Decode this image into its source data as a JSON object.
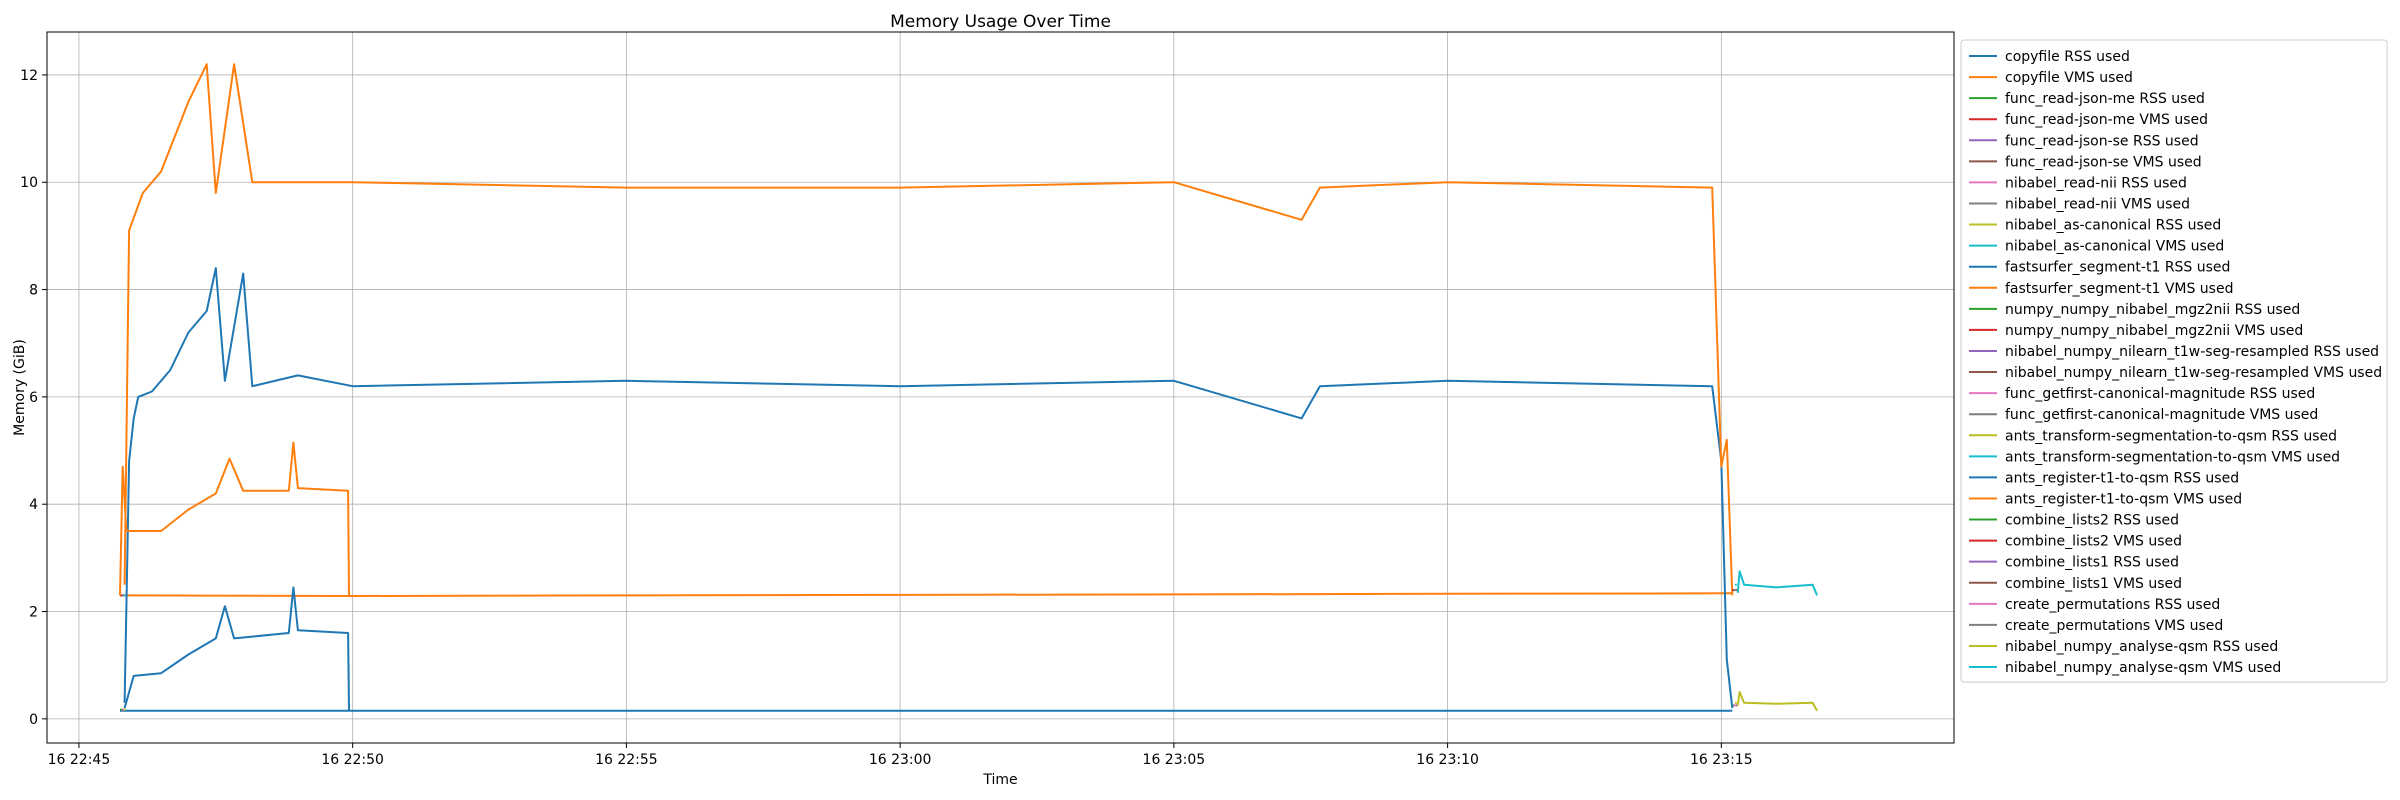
{
  "chart_data": {
    "type": "line",
    "title": "Memory Usage Over Time",
    "xlabel": "Time",
    "ylabel": "Memory (GiB)",
    "grid": true,
    "legend_position": "outside-right",
    "x_unit": "timestamp",
    "xlim": [
      "16 22:44:25",
      "16 23:19:15"
    ],
    "ylim": [
      -0.45,
      12.8
    ],
    "x_ticks": [
      {
        "value": "16 22:45:00",
        "label": "16 22:45"
      },
      {
        "value": "16 22:50:00",
        "label": "16 22:50"
      },
      {
        "value": "16 22:55:00",
        "label": "16 22:55"
      },
      {
        "value": "16 23:00:00",
        "label": "16 23:00"
      },
      {
        "value": "16 23:05:00",
        "label": "16 23:05"
      },
      {
        "value": "16 23:10:00",
        "label": "16 23:10"
      },
      {
        "value": "16 23:15:00",
        "label": "16 23:15"
      }
    ],
    "y_ticks": [
      0,
      2,
      4,
      6,
      8,
      10,
      12
    ],
    "series": [
      {
        "name": "copyfile RSS used",
        "color": "#1f77b4",
        "points": [
          [
            "16 22:45:45",
            0.15
          ],
          [
            "16 23:15:12",
            0.15
          ]
        ]
      },
      {
        "name": "copyfile VMS used",
        "color": "#ff7f0e",
        "points": [
          [
            "16 22:45:45",
            2.3
          ],
          [
            "16 22:50:00",
            2.29
          ],
          [
            "16 22:55:00",
            2.3
          ],
          [
            "16 23:00:00",
            2.31
          ],
          [
            "16 23:05:00",
            2.32
          ],
          [
            "16 23:10:00",
            2.33
          ],
          [
            "16 23:15:12",
            2.34
          ]
        ]
      },
      {
        "name": "func_read-json-me RSS used",
        "color": "#2ca02c",
        "points": [
          [
            "16 22:45:45",
            0.17
          ],
          [
            "16 22:45:47",
            0.17
          ]
        ]
      },
      {
        "name": "func_read-json-me VMS used",
        "color": "#d62728",
        "points": [
          [
            "16 22:45:45",
            2.3
          ],
          [
            "16 22:45:47",
            2.3
          ]
        ]
      },
      {
        "name": "func_read-json-se RSS used",
        "color": "#9467bd",
        "points": [
          [
            "16 22:45:47",
            0.17
          ],
          [
            "16 22:45:49",
            0.17
          ]
        ]
      },
      {
        "name": "func_read-json-se VMS used",
        "color": "#8c564b",
        "points": [
          [
            "16 22:45:47",
            2.3
          ],
          [
            "16 22:45:49",
            2.3
          ]
        ]
      },
      {
        "name": "nibabel_read-nii RSS used",
        "color": "#e377c2",
        "points": [
          [
            "16 22:45:48",
            0.17
          ],
          [
            "16 22:45:50",
            0.17
          ]
        ]
      },
      {
        "name": "nibabel_read-nii VMS used",
        "color": "#7f7f7f",
        "points": [
          [
            "16 22:45:48",
            2.3
          ],
          [
            "16 22:45:50",
            2.3
          ]
        ]
      },
      {
        "name": "nibabel_as-canonical RSS used",
        "color": "#bcbd22",
        "points": [
          [
            "16 22:45:49",
            0.17
          ],
          [
            "16 22:45:51",
            0.17
          ]
        ]
      },
      {
        "name": "nibabel_as-canonical VMS used",
        "color": "#17becf",
        "points": [
          [
            "16 22:45:49",
            2.3
          ],
          [
            "16 22:45:51",
            2.3
          ]
        ]
      },
      {
        "name": "fastsurfer_segment-t1 RSS used",
        "color": "#1f77b4",
        "points": [
          [
            "16 22:45:50",
            0.3
          ],
          [
            "16 22:45:55",
            4.8
          ],
          [
            "16 22:46:00",
            5.6
          ],
          [
            "16 22:46:05",
            6.0
          ],
          [
            "16 22:46:20",
            6.1
          ],
          [
            "16 22:46:40",
            6.5
          ],
          [
            "16 22:47:00",
            7.2
          ],
          [
            "16 22:47:20",
            7.6
          ],
          [
            "16 22:47:30",
            8.4
          ],
          [
            "16 22:47:40",
            6.3
          ],
          [
            "16 22:48:00",
            8.3
          ],
          [
            "16 22:48:10",
            6.2
          ],
          [
            "16 22:49:00",
            6.4
          ],
          [
            "16 22:50:00",
            6.2
          ],
          [
            "16 22:55:00",
            6.3
          ],
          [
            "16 23:00:00",
            6.2
          ],
          [
            "16 23:05:00",
            6.3
          ],
          [
            "16 23:07:20",
            5.6
          ],
          [
            "16 23:07:40",
            6.2
          ],
          [
            "16 23:10:00",
            6.3
          ],
          [
            "16 23:14:50",
            6.2
          ],
          [
            "16 23:15:00",
            4.8
          ],
          [
            "16 23:15:06",
            1.1
          ],
          [
            "16 23:15:12",
            0.2
          ]
        ]
      },
      {
        "name": "fastsurfer_segment-t1 VMS used",
        "color": "#ff7f0e",
        "points": [
          [
            "16 22:45:50",
            2.5
          ],
          [
            "16 22:45:55",
            9.1
          ],
          [
            "16 22:46:10",
            9.8
          ],
          [
            "16 22:46:30",
            10.2
          ],
          [
            "16 22:47:00",
            11.5
          ],
          [
            "16 22:47:20",
            12.2
          ],
          [
            "16 22:47:30",
            9.8
          ],
          [
            "16 22:47:50",
            12.2
          ],
          [
            "16 22:48:10",
            10.0
          ],
          [
            "16 22:50:00",
            10.0
          ],
          [
            "16 22:55:00",
            9.9
          ],
          [
            "16 23:00:00",
            9.9
          ],
          [
            "16 23:05:00",
            10.0
          ],
          [
            "16 23:07:20",
            9.3
          ],
          [
            "16 23:07:40",
            9.9
          ],
          [
            "16 23:10:00",
            10.0
          ],
          [
            "16 23:14:50",
            9.9
          ],
          [
            "16 23:15:00",
            4.7
          ],
          [
            "16 23:15:06",
            5.2
          ],
          [
            "16 23:15:12",
            2.3
          ]
        ]
      },
      {
        "name": "numpy_numpy_nibabel_mgz2nii RSS used",
        "color": "#2ca02c",
        "points": [
          [
            "16 23:15:12",
            0.25
          ],
          [
            "16 23:15:14",
            0.25
          ]
        ]
      },
      {
        "name": "numpy_numpy_nibabel_mgz2nii VMS used",
        "color": "#d62728",
        "points": [
          [
            "16 23:15:12",
            2.4
          ],
          [
            "16 23:15:14",
            2.4
          ]
        ]
      },
      {
        "name": "nibabel_numpy_nilearn_t1w-seg-resampled RSS used",
        "color": "#9467bd",
        "points": [
          [
            "16 23:15:13",
            0.25
          ],
          [
            "16 23:15:15",
            0.25
          ]
        ]
      },
      {
        "name": "nibabel_numpy_nilearn_t1w-seg-resampled VMS used",
        "color": "#8c564b",
        "points": [
          [
            "16 23:15:13",
            2.4
          ],
          [
            "16 23:15:15",
            2.4
          ]
        ]
      },
      {
        "name": "func_getfirst-canonical-magnitude RSS used",
        "color": "#e377c2",
        "points": [
          [
            "16 23:15:14",
            0.25
          ],
          [
            "16 23:15:16",
            0.25
          ]
        ]
      },
      {
        "name": "func_getfirst-canonical-magnitude VMS used",
        "color": "#7f7f7f",
        "points": [
          [
            "16 23:15:14",
            2.4
          ],
          [
            "16 23:15:16",
            2.4
          ]
        ]
      },
      {
        "name": "ants_transform-segmentation-to-qsm RSS used",
        "color": "#bcbd22",
        "points": [
          [
            "16 23:15:15",
            0.3
          ],
          [
            "16 23:15:17",
            0.3
          ]
        ]
      },
      {
        "name": "ants_transform-segmentation-to-qsm VMS used",
        "color": "#17becf",
        "points": [
          [
            "16 23:15:15",
            2.5
          ],
          [
            "16 23:15:17",
            2.5
          ]
        ]
      },
      {
        "name": "ants_register-t1-to-qsm RSS used",
        "color": "#1f77b4",
        "points": [
          [
            "16 22:45:50",
            0.2
          ],
          [
            "16 22:46:00",
            0.8
          ],
          [
            "16 22:46:30",
            0.85
          ],
          [
            "16 22:47:00",
            1.2
          ],
          [
            "16 22:47:30",
            1.5
          ],
          [
            "16 22:47:40",
            2.1
          ],
          [
            "16 22:47:50",
            1.5
          ],
          [
            "16 22:48:50",
            1.6
          ],
          [
            "16 22:48:55",
            2.45
          ],
          [
            "16 22:49:00",
            1.65
          ],
          [
            "16 22:49:55",
            1.6
          ],
          [
            "16 22:49:56",
            0.15
          ]
        ]
      },
      {
        "name": "ants_register-t1-to-qsm VMS used",
        "color": "#ff7f0e",
        "points": [
          [
            "16 22:45:45",
            2.3
          ],
          [
            "16 22:45:48",
            4.7
          ],
          [
            "16 22:45:52",
            3.5
          ],
          [
            "16 22:46:30",
            3.5
          ],
          [
            "16 22:47:00",
            3.9
          ],
          [
            "16 22:47:30",
            4.2
          ],
          [
            "16 22:47:45",
            4.85
          ],
          [
            "16 22:48:00",
            4.25
          ],
          [
            "16 22:48:50",
            4.25
          ],
          [
            "16 22:48:55",
            5.15
          ],
          [
            "16 22:49:00",
            4.3
          ],
          [
            "16 22:49:55",
            4.25
          ],
          [
            "16 22:49:56",
            2.3
          ]
        ]
      },
      {
        "name": "combine_lists2 RSS used",
        "color": "#2ca02c",
        "points": [
          [
            "16 23:15:16",
            0.25
          ],
          [
            "16 23:15:17",
            0.25
          ]
        ]
      },
      {
        "name": "combine_lists2 VMS used",
        "color": "#d62728",
        "points": [
          [
            "16 23:15:16",
            2.4
          ],
          [
            "16 23:15:17",
            2.4
          ]
        ]
      },
      {
        "name": "combine_lists1 RSS used",
        "color": "#9467bd",
        "points": [
          [
            "16 23:15:16",
            0.25
          ],
          [
            "16 23:15:17",
            0.25
          ]
        ]
      },
      {
        "name": "combine_lists1 VMS used",
        "color": "#8c564b",
        "points": [
          [
            "16 23:15:16",
            2.4
          ],
          [
            "16 23:15:17",
            2.4
          ]
        ]
      },
      {
        "name": "create_permutations RSS used",
        "color": "#e377c2",
        "points": [
          [
            "16 23:15:17",
            0.25
          ],
          [
            "16 23:15:18",
            0.25
          ]
        ]
      },
      {
        "name": "create_permutations VMS used",
        "color": "#7f7f7f",
        "points": [
          [
            "16 23:15:17",
            2.4
          ],
          [
            "16 23:15:18",
            2.4
          ]
        ]
      },
      {
        "name": "nibabel_numpy_analyse-qsm RSS used",
        "color": "#bcbd22",
        "points": [
          [
            "16 23:15:18",
            0.25
          ],
          [
            "16 23:15:20",
            0.5
          ],
          [
            "16 23:15:25",
            0.3
          ],
          [
            "16 23:16:00",
            0.28
          ],
          [
            "16 23:16:40",
            0.3
          ],
          [
            "16 23:16:45",
            0.15
          ]
        ]
      },
      {
        "name": "nibabel_numpy_analyse-qsm VMS used",
        "color": "#17becf",
        "points": [
          [
            "16 23:15:18",
            2.35
          ],
          [
            "16 23:15:20",
            2.75
          ],
          [
            "16 23:15:25",
            2.5
          ],
          [
            "16 23:16:00",
            2.45
          ],
          [
            "16 23:16:40",
            2.5
          ],
          [
            "16 23:16:45",
            2.3
          ]
        ]
      }
    ]
  }
}
